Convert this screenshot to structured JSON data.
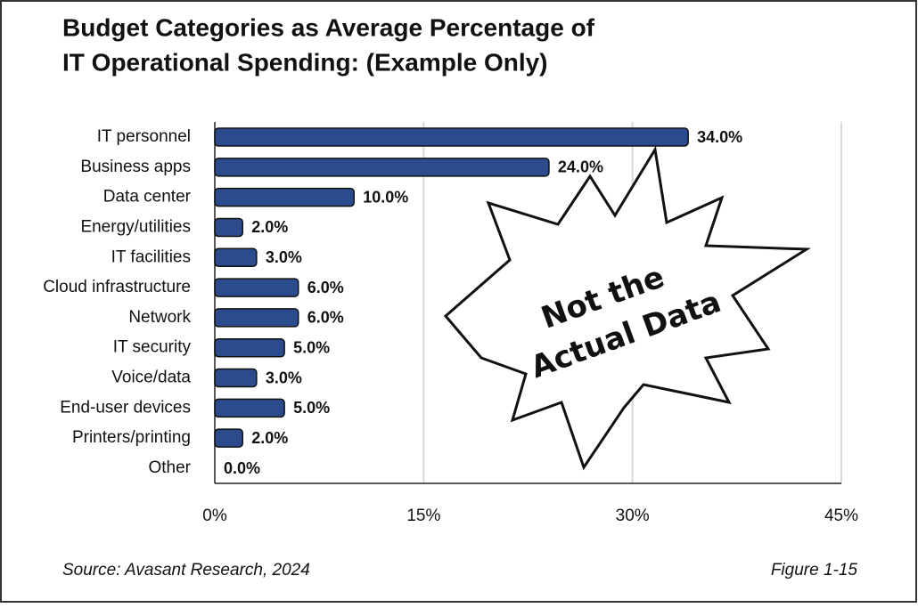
{
  "chart_data": {
    "type": "bar",
    "orientation": "horizontal",
    "title": [
      "Budget Categories as Average  Percentage of",
      "IT Operational Spending: (Example Only)"
    ],
    "categories": [
      "IT personnel",
      "Business apps",
      "Data center",
      "Energy/utilities",
      "IT facilities",
      "Cloud infrastructure",
      "Network",
      "IT security",
      "Voice/data",
      "End-user devices",
      "Printers/printing",
      "Other"
    ],
    "values": [
      34,
      24,
      10,
      2,
      3,
      6,
      6,
      5,
      3,
      5,
      2,
      0
    ],
    "value_labels": [
      "34.0%",
      "24.0%",
      "10.0%",
      "2.0%",
      "3.0%",
      "6.0%",
      "6.0%",
      "5.0%",
      "3.0%",
      "5.0%",
      "2.0%",
      "0.0%"
    ],
    "color": "#2c4b8c",
    "xlim": [
      0,
      45
    ],
    "xticks": [
      {
        "value": 0,
        "label": "0%"
      },
      {
        "value": 15,
        "label": "15%"
      },
      {
        "value": 30,
        "label": "30%"
      },
      {
        "value": 45,
        "label": "45%"
      }
    ],
    "grid": true,
    "annotation": [
      "Not the",
      "Actual Data"
    ],
    "source": "Source: Avasant  Research, 2024",
    "figure": "Figure 1-15"
  }
}
